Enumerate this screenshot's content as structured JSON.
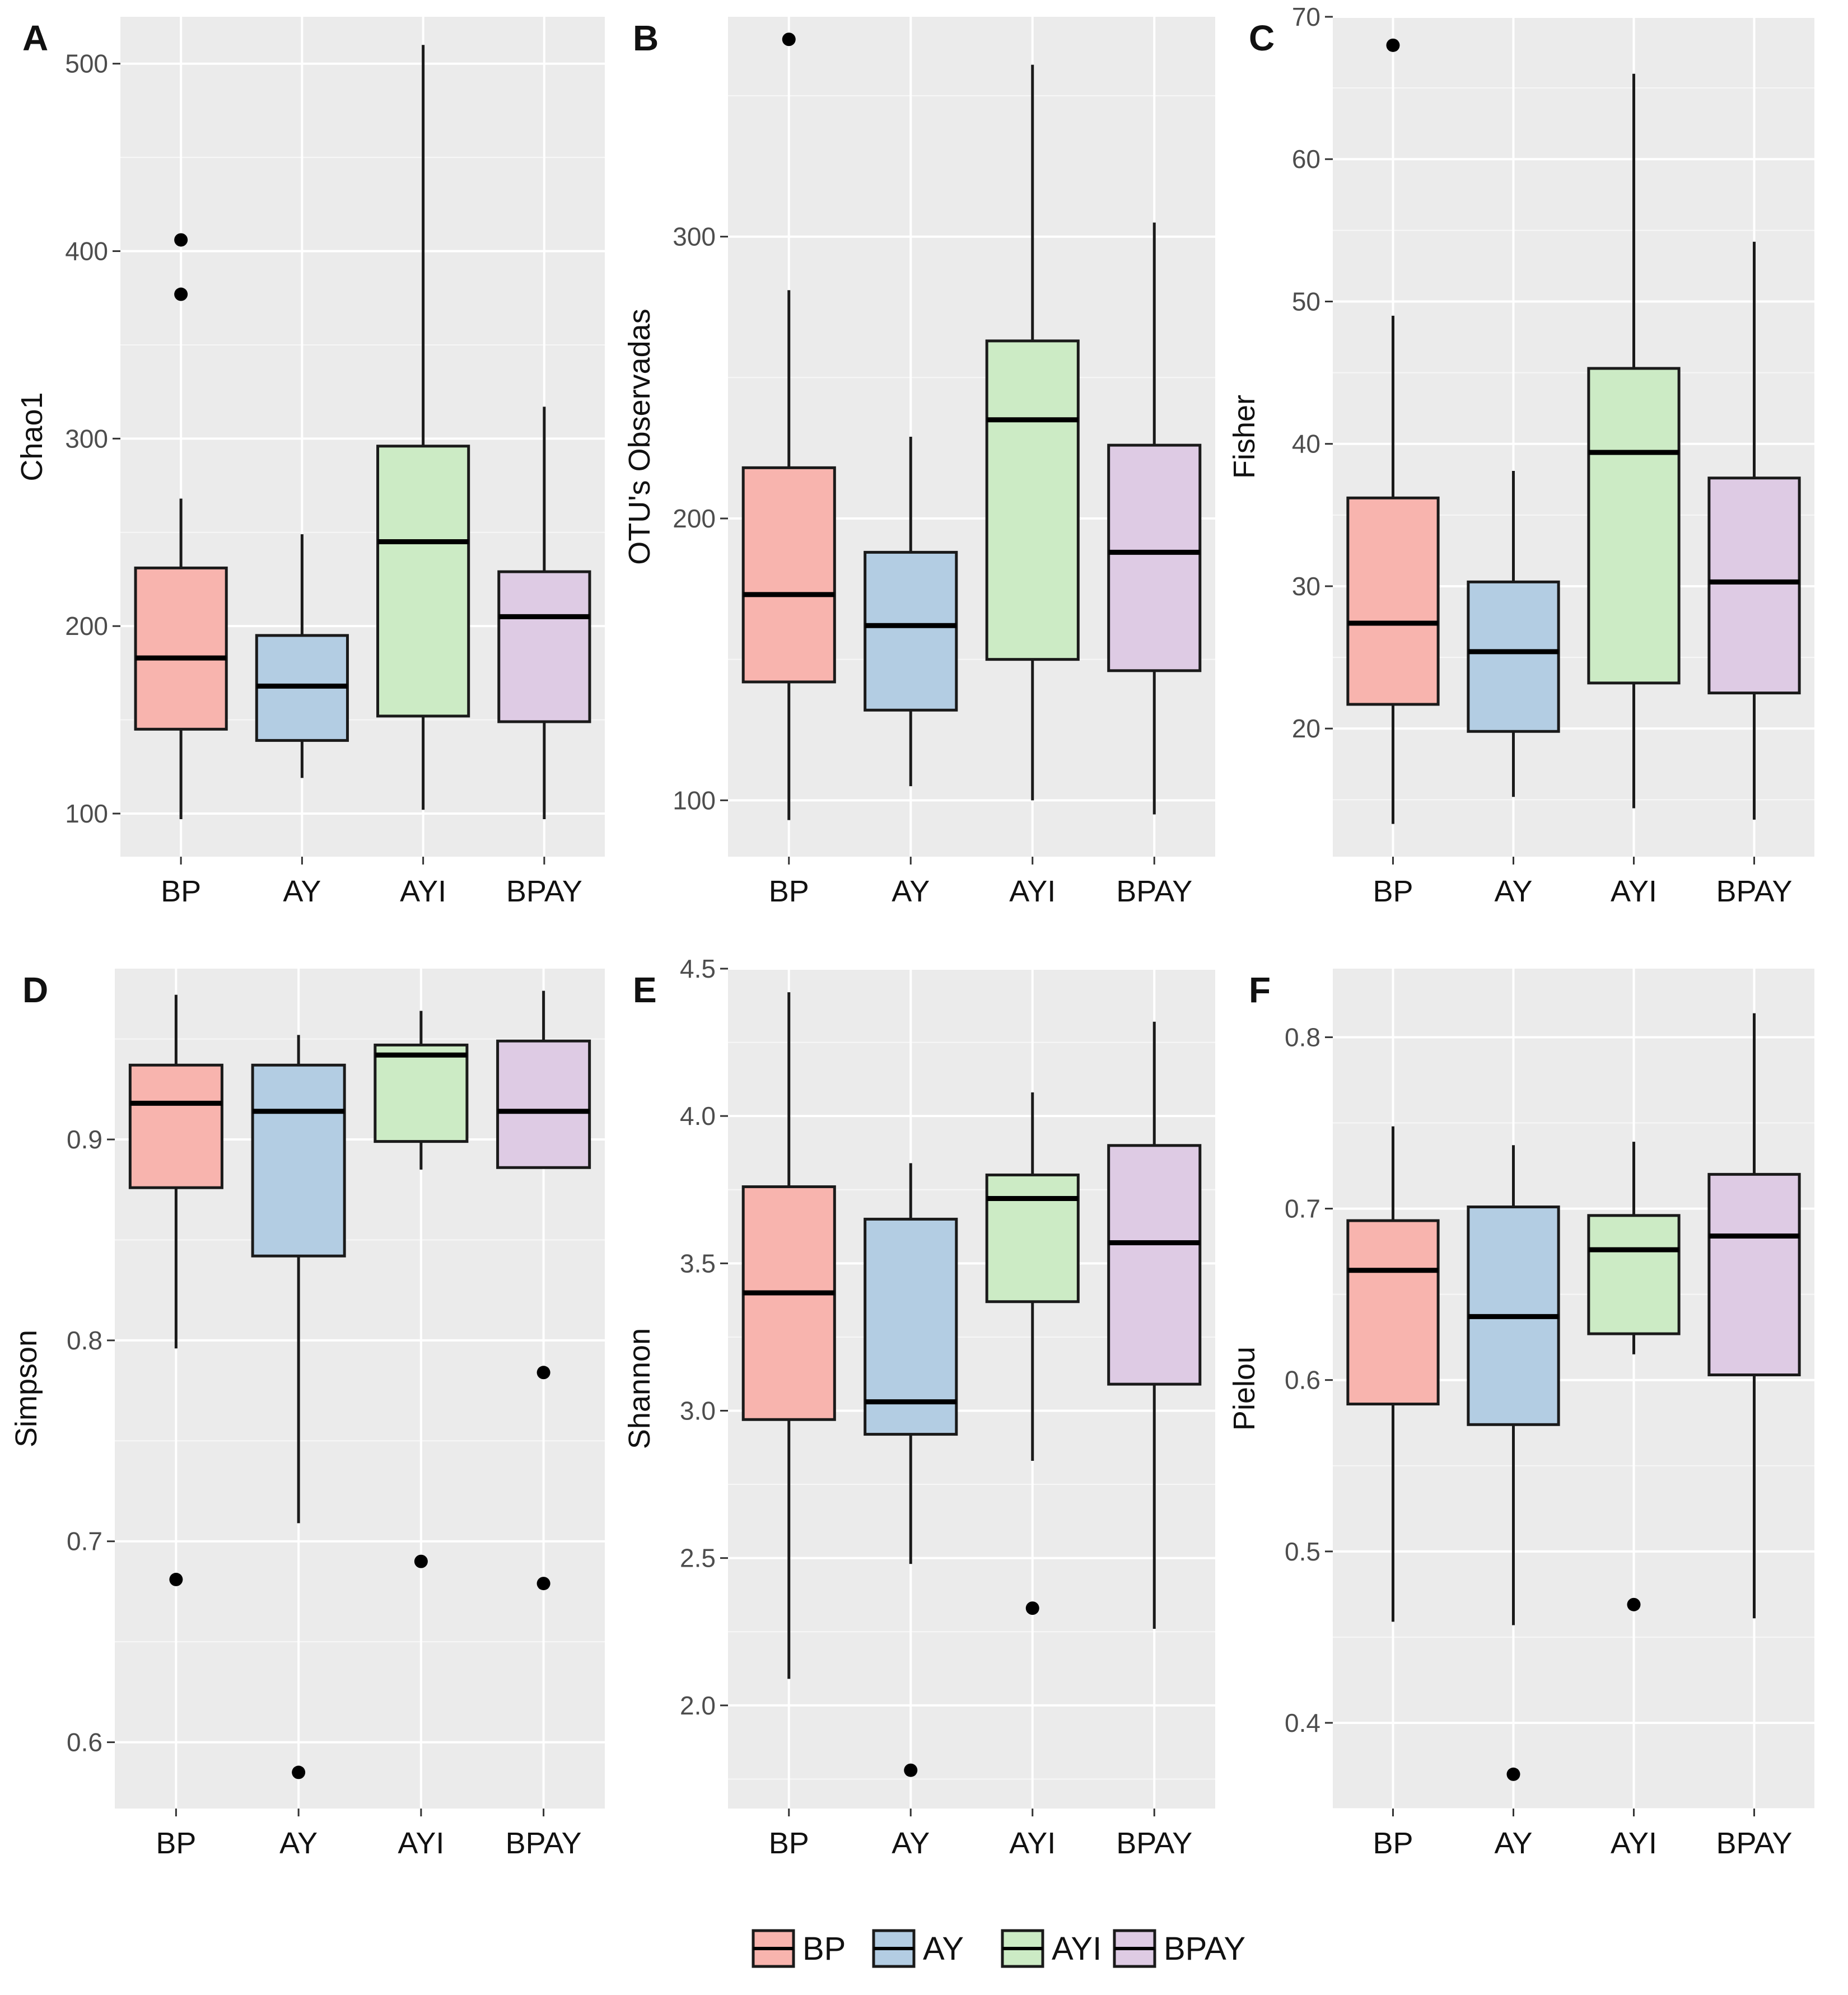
{
  "legend": {
    "items": [
      {
        "label": "BP",
        "color": "#F8B4AE"
      },
      {
        "label": "AY",
        "color": "#B3CDE3"
      },
      {
        "label": "AYI",
        "color": "#CCEBC5"
      },
      {
        "label": "BPAY",
        "color": "#DECBE4"
      }
    ]
  },
  "colors": {
    "panel_bg": "#EBEBEB",
    "grid": "#FFFFFF",
    "box_stroke": "#1A1A1A",
    "outlier": "#000000"
  },
  "chart_data": [
    {
      "panel": "A",
      "type": "box",
      "ylabel": "Chao1",
      "categories": [
        "BP",
        "AY",
        "AYI",
        "BPAY"
      ],
      "ylim": [
        77,
        525
      ],
      "yticks": [
        100,
        200,
        300,
        400,
        500
      ],
      "boxes": [
        {
          "low": 97,
          "q1": 145,
          "median": 183,
          "q3": 231,
          "high": 268,
          "outliers": [
            406,
            377
          ]
        },
        {
          "low": 119,
          "q1": 139,
          "median": 168,
          "q3": 195,
          "high": 249,
          "outliers": []
        },
        {
          "low": 102,
          "q1": 152,
          "median": 245,
          "q3": 296,
          "high": 510,
          "outliers": []
        },
        {
          "low": 97,
          "q1": 149,
          "median": 205,
          "q3": 229,
          "high": 317,
          "outliers": []
        }
      ]
    },
    {
      "panel": "B",
      "type": "box",
      "ylabel": "OTU's Observadas",
      "categories": [
        "BP",
        "AY",
        "AYI",
        "BPAY"
      ],
      "ylim": [
        80,
        378
      ],
      "yticks": [
        100,
        200,
        300
      ],
      "boxes": [
        {
          "low": 93,
          "q1": 142,
          "median": 173,
          "q3": 218,
          "high": 281,
          "outliers": [
            370
          ]
        },
        {
          "low": 105,
          "q1": 132,
          "median": 162,
          "q3": 188,
          "high": 229,
          "outliers": []
        },
        {
          "low": 100,
          "q1": 150,
          "median": 235,
          "q3": 263,
          "high": 361,
          "outliers": []
        },
        {
          "low": 95,
          "q1": 146,
          "median": 188,
          "q3": 226,
          "high": 305,
          "outliers": []
        }
      ]
    },
    {
      "panel": "C",
      "type": "box",
      "ylabel": "Fisher",
      "categories": [
        "BP",
        "AY",
        "AYI",
        "BPAY"
      ],
      "ylim": [
        11,
        70
      ],
      "yticks": [
        20,
        30,
        40,
        50,
        60,
        70
      ],
      "boxes": [
        {
          "low": 13.3,
          "q1": 21.7,
          "median": 27.4,
          "q3": 36.2,
          "high": 49.0,
          "outliers": [
            68.0
          ]
        },
        {
          "low": 15.2,
          "q1": 19.8,
          "median": 25.4,
          "q3": 30.3,
          "high": 38.1,
          "outliers": []
        },
        {
          "low": 14.4,
          "q1": 23.2,
          "median": 39.4,
          "q3": 45.3,
          "high": 66.0,
          "outliers": []
        },
        {
          "low": 13.6,
          "q1": 22.5,
          "median": 30.3,
          "q3": 37.6,
          "high": 54.2,
          "outliers": []
        }
      ]
    },
    {
      "panel": "D",
      "type": "box",
      "ylabel": "Simpson",
      "categories": [
        "BP",
        "AY",
        "AYI",
        "BPAY"
      ],
      "ylim": [
        0.567,
        0.985
      ],
      "yticks": [
        0.6,
        0.7,
        0.8,
        0.9
      ],
      "boxes": [
        {
          "low": 0.796,
          "q1": 0.876,
          "median": 0.918,
          "q3": 0.937,
          "high": 0.972,
          "outliers": [
            0.681
          ]
        },
        {
          "low": 0.709,
          "q1": 0.842,
          "median": 0.914,
          "q3": 0.937,
          "high": 0.952,
          "outliers": [
            0.585
          ]
        },
        {
          "low": 0.885,
          "q1": 0.899,
          "median": 0.942,
          "q3": 0.947,
          "high": 0.964,
          "outliers": [
            0.69
          ]
        },
        {
          "low": 0.886,
          "q1": 0.886,
          "median": 0.914,
          "q3": 0.949,
          "high": 0.974,
          "outliers": [
            0.784,
            0.679
          ]
        }
      ]
    },
    {
      "panel": "E",
      "type": "box",
      "ylabel": "Shannon",
      "categories": [
        "BP",
        "AY",
        "AYI",
        "BPAY"
      ],
      "ylim": [
        1.65,
        4.5
      ],
      "yticks": [
        2.0,
        2.5,
        3.0,
        3.5,
        4.0,
        4.5
      ],
      "boxes": [
        {
          "low": 2.09,
          "q1": 2.97,
          "median": 3.4,
          "q3": 3.76,
          "high": 4.42,
          "outliers": []
        },
        {
          "low": 2.48,
          "q1": 2.92,
          "median": 3.03,
          "q3": 3.65,
          "high": 3.84,
          "outliers": [
            1.78
          ]
        },
        {
          "low": 2.83,
          "q1": 3.37,
          "median": 3.72,
          "q3": 3.8,
          "high": 4.08,
          "outliers": [
            2.33
          ]
        },
        {
          "low": 2.26,
          "q1": 3.09,
          "median": 3.57,
          "q3": 3.9,
          "high": 4.32,
          "outliers": []
        }
      ]
    },
    {
      "panel": "F",
      "type": "box",
      "ylabel": "Pielou",
      "categories": [
        "BP",
        "AY",
        "AYI",
        "BPAY"
      ],
      "ylim": [
        0.35,
        0.84
      ],
      "yticks": [
        0.4,
        0.5,
        0.6,
        0.7,
        0.8
      ],
      "boxes": [
        {
          "low": 0.459,
          "q1": 0.586,
          "median": 0.664,
          "q3": 0.693,
          "high": 0.748,
          "outliers": []
        },
        {
          "low": 0.457,
          "q1": 0.574,
          "median": 0.637,
          "q3": 0.701,
          "high": 0.737,
          "outliers": [
            0.37
          ]
        },
        {
          "low": 0.615,
          "q1": 0.627,
          "median": 0.676,
          "q3": 0.696,
          "high": 0.739,
          "outliers": [
            0.469
          ]
        },
        {
          "low": 0.461,
          "q1": 0.603,
          "median": 0.684,
          "q3": 0.72,
          "high": 0.814,
          "outliers": []
        }
      ]
    }
  ]
}
